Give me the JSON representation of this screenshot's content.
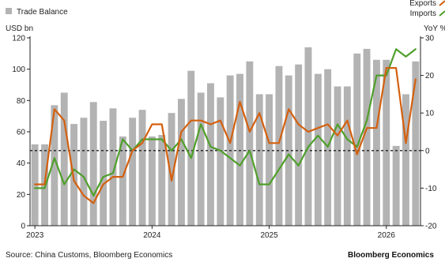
{
  "chart_data": {
    "type": "bar+line",
    "legend": [
      {
        "label": "Trade Balance",
        "kind": "bar",
        "color": "#b3b3b3"
      },
      {
        "label": "Exports",
        "kind": "line",
        "color": "#d4600f"
      },
      {
        "label": "Imports",
        "kind": "line",
        "color": "#4f9f2b"
      }
    ],
    "left_axis": {
      "label": "USD bn",
      "range": [
        0,
        120
      ],
      "ticks": [
        0,
        20,
        40,
        60,
        80,
        100,
        120
      ]
    },
    "right_axis": {
      "label": "YoY %",
      "range": [
        -20,
        30
      ],
      "ticks": [
        -20,
        -10,
        0,
        10,
        20,
        30
      ],
      "tick_labels": [
        "-20",
        "-10",
        "0",
        "10",
        "20",
        "30"
      ]
    },
    "x_axis": {
      "labels": [
        "2023",
        "2024",
        "2025",
        "2026"
      ]
    },
    "zero_line_yoy": 0,
    "series": [
      {
        "name": "Trade Balance",
        "axis": "left",
        "values": [
          52,
          52,
          77,
          85,
          65,
          69,
          79,
          67,
          75,
          57,
          69,
          74,
          57,
          58,
          72,
          81,
          99,
          85,
          91,
          82,
          96,
          97,
          105,
          84,
          84,
          102,
          96,
          103,
          114,
          97,
          100,
          89,
          89,
          110,
          113,
          106,
          106,
          51,
          84,
          105
        ]
      },
      {
        "name": "Exports",
        "axis": "right",
        "values": [
          -9,
          -9,
          11,
          8,
          -8,
          -12,
          -14,
          -9,
          -7,
          -7,
          0,
          2,
          7,
          7,
          -8,
          5,
          8,
          8,
          7,
          8,
          2,
          13,
          5,
          10,
          2,
          2,
          11,
          7,
          5,
          6,
          7,
          4,
          8,
          -1,
          6,
          6,
          22,
          22,
          2,
          19
        ]
      },
      {
        "name": "Imports",
        "axis": "right",
        "values": [
          -10,
          -10,
          -2,
          -9,
          -5,
          -7,
          -12,
          -7,
          -6,
          3,
          0,
          3,
          3,
          3,
          0,
          3,
          -2,
          7,
          1,
          0,
          -2,
          -4,
          0,
          -9,
          -9,
          -5,
          -1,
          -4,
          1,
          4,
          1,
          7,
          3,
          1,
          8,
          20,
          20,
          27,
          25,
          27
        ]
      }
    ],
    "source": "Source: China Customs, Bloomberg Economics",
    "brand": "Bloomberg Economics"
  }
}
